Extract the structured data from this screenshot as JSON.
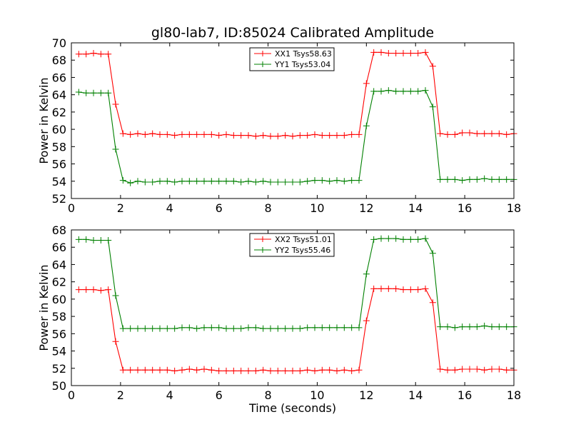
{
  "figure_title": "gl80-lab7, ID:85024 Calibrated Amplitude",
  "chart_data": [
    {
      "type": "line",
      "title": "gl80-lab7, ID:85024 Calibrated Amplitude",
      "xlabel": "",
      "ylabel": "Power in Kelvin",
      "xlim": [
        0,
        18
      ],
      "ylim": [
        52,
        70
      ],
      "xticks": [
        0,
        2,
        4,
        6,
        8,
        10,
        12,
        14,
        16,
        18
      ],
      "yticks": [
        52,
        54,
        56,
        58,
        60,
        62,
        64,
        66,
        68,
        70
      ],
      "legend_position": "upper center",
      "grid": false,
      "x": [
        0.3,
        0.6,
        0.9,
        1.2,
        1.5,
        1.8,
        2.1,
        2.4,
        2.7,
        3.0,
        3.3,
        3.6,
        3.9,
        4.2,
        4.5,
        4.8,
        5.1,
        5.4,
        5.7,
        6.0,
        6.3,
        6.6,
        6.9,
        7.2,
        7.5,
        7.8,
        8.1,
        8.4,
        8.7,
        9.0,
        9.3,
        9.6,
        9.9,
        10.2,
        10.5,
        10.8,
        11.1,
        11.4,
        11.7,
        12.0,
        12.3,
        12.6,
        12.9,
        13.2,
        13.5,
        13.8,
        14.1,
        14.4,
        14.7,
        15.0,
        15.3,
        15.6,
        15.9,
        16.2,
        16.5,
        16.8,
        17.1,
        17.4,
        17.7,
        18.0
      ],
      "series": [
        {
          "name": "XX1 Tsys58.63",
          "color": "#ff0000",
          "values": [
            68.7,
            68.7,
            68.8,
            68.7,
            68.7,
            62.9,
            59.5,
            59.4,
            59.5,
            59.4,
            59.5,
            59.4,
            59.4,
            59.3,
            59.4,
            59.4,
            59.4,
            59.4,
            59.4,
            59.3,
            59.4,
            59.3,
            59.3,
            59.3,
            59.2,
            59.3,
            59.2,
            59.2,
            59.3,
            59.2,
            59.3,
            59.3,
            59.4,
            59.3,
            59.3,
            59.3,
            59.3,
            59.4,
            59.4,
            65.3,
            68.9,
            68.9,
            68.8,
            68.8,
            68.8,
            68.8,
            68.8,
            68.9,
            67.3,
            59.5,
            59.4,
            59.4,
            59.6,
            59.6,
            59.5,
            59.5,
            59.5,
            59.5,
            59.4,
            59.5
          ]
        },
        {
          "name": "YY1 Tsys53.04",
          "color": "#008000",
          "values": [
            64.3,
            64.2,
            64.2,
            64.2,
            64.2,
            57.7,
            54.1,
            53.8,
            54.0,
            53.9,
            53.9,
            54.0,
            54.0,
            53.9,
            54.0,
            54.0,
            54.0,
            54.0,
            54.0,
            54.0,
            54.0,
            54.0,
            53.9,
            54.0,
            53.9,
            54.0,
            53.9,
            53.9,
            53.9,
            53.9,
            53.9,
            54.0,
            54.1,
            54.1,
            54.0,
            54.1,
            54.0,
            54.1,
            54.1,
            60.4,
            64.4,
            64.4,
            64.5,
            64.4,
            64.4,
            64.4,
            64.4,
            64.5,
            62.6,
            54.2,
            54.2,
            54.2,
            54.1,
            54.2,
            54.2,
            54.3,
            54.2,
            54.2,
            54.2,
            54.2
          ]
        }
      ]
    },
    {
      "type": "line",
      "title": "",
      "xlabel": "Time (seconds)",
      "ylabel": "Power in Kelvin",
      "xlim": [
        0,
        18
      ],
      "ylim": [
        50,
        68
      ],
      "xticks": [
        0,
        2,
        4,
        6,
        8,
        10,
        12,
        14,
        16,
        18
      ],
      "yticks": [
        50,
        52,
        54,
        56,
        58,
        60,
        62,
        64,
        66,
        68
      ],
      "legend_position": "upper center",
      "grid": false,
      "x": [
        0.3,
        0.6,
        0.9,
        1.2,
        1.5,
        1.8,
        2.1,
        2.4,
        2.7,
        3.0,
        3.3,
        3.6,
        3.9,
        4.2,
        4.5,
        4.8,
        5.1,
        5.4,
        5.7,
        6.0,
        6.3,
        6.6,
        6.9,
        7.2,
        7.5,
        7.8,
        8.1,
        8.4,
        8.7,
        9.0,
        9.3,
        9.6,
        9.9,
        10.2,
        10.5,
        10.8,
        11.1,
        11.4,
        11.7,
        12.0,
        12.3,
        12.6,
        12.9,
        13.2,
        13.5,
        13.8,
        14.1,
        14.4,
        14.7,
        15.0,
        15.3,
        15.6,
        15.9,
        16.2,
        16.5,
        16.8,
        17.1,
        17.4,
        17.7,
        18.0
      ],
      "series": [
        {
          "name": "XX2 Tsys51.01",
          "color": "#ff0000",
          "values": [
            61.1,
            61.1,
            61.1,
            61.0,
            61.1,
            55.1,
            51.8,
            51.8,
            51.8,
            51.8,
            51.8,
            51.8,
            51.8,
            51.7,
            51.8,
            51.9,
            51.8,
            51.9,
            51.8,
            51.7,
            51.7,
            51.7,
            51.7,
            51.7,
            51.7,
            51.8,
            51.7,
            51.7,
            51.7,
            51.7,
            51.7,
            51.8,
            51.7,
            51.8,
            51.8,
            51.7,
            51.8,
            51.7,
            51.8,
            57.5,
            61.2,
            61.2,
            61.2,
            61.2,
            61.1,
            61.1,
            61.1,
            61.2,
            59.6,
            51.9,
            51.8,
            51.8,
            51.9,
            51.9,
            51.9,
            51.8,
            51.9,
            51.9,
            51.8,
            51.8
          ]
        },
        {
          "name": "YY2 Tsys55.46",
          "color": "#008000",
          "values": [
            66.9,
            66.9,
            66.8,
            66.8,
            66.8,
            60.4,
            56.6,
            56.6,
            56.6,
            56.6,
            56.6,
            56.6,
            56.6,
            56.6,
            56.7,
            56.7,
            56.6,
            56.7,
            56.7,
            56.7,
            56.6,
            56.6,
            56.6,
            56.7,
            56.7,
            56.6,
            56.6,
            56.6,
            56.6,
            56.6,
            56.6,
            56.7,
            56.7,
            56.7,
            56.7,
            56.7,
            56.7,
            56.7,
            56.7,
            62.9,
            66.9,
            67.0,
            67.0,
            67.0,
            66.9,
            66.9,
            66.9,
            67.0,
            65.3,
            56.8,
            56.8,
            56.7,
            56.8,
            56.8,
            56.8,
            56.9,
            56.8,
            56.8,
            56.8,
            56.8
          ]
        }
      ]
    }
  ]
}
